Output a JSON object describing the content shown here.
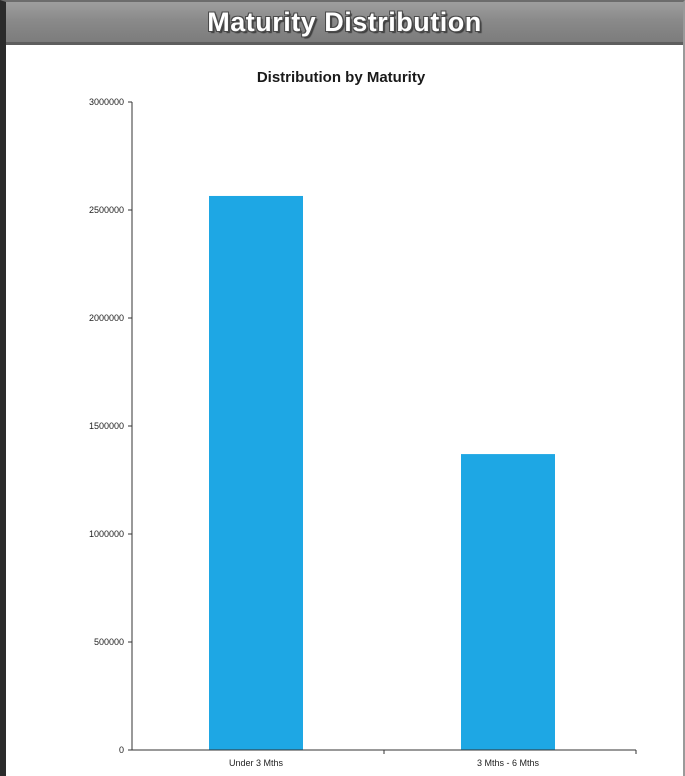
{
  "banner": {
    "title": "Maturity Distribution"
  },
  "colors": {
    "bar": "#1ea7e4",
    "axis": "#333333",
    "banner": "#8a8a8a"
  },
  "chart_data": {
    "type": "bar",
    "title": "Distribution by Maturity",
    "xlabel": "",
    "ylabel": "",
    "categories": [
      "Under 3 Mths",
      "3 Mths - 6 Mths"
    ],
    "values": [
      2565000,
      1370000
    ],
    "ylim": [
      0,
      3000000
    ],
    "yticks": [
      0,
      500000,
      1000000,
      1500000,
      2000000,
      2500000,
      3000000
    ],
    "ytick_labels": [
      "0",
      "500000",
      "1000000",
      "1500000",
      "2000000",
      "2500000",
      "3000000"
    ],
    "grid": false,
    "legend": "none"
  }
}
